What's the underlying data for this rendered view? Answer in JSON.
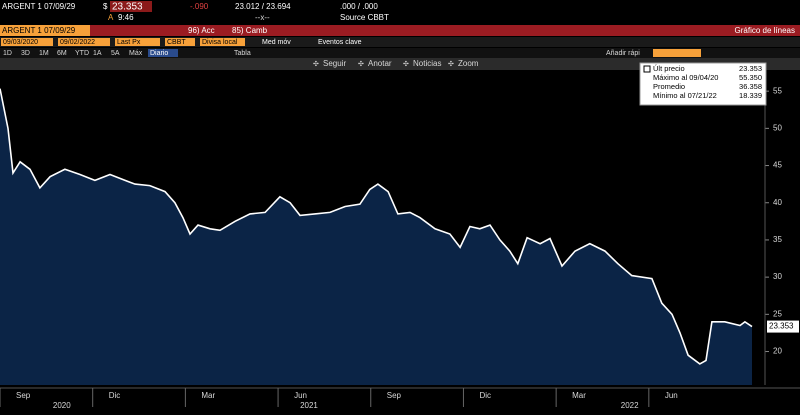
{
  "header": {
    "security": "ARGENT 1 07/09/29",
    "currency": "$",
    "price": "23.353",
    "change": "-.090",
    "range": "23.012 / 23.694",
    "yield": ".000 / .000",
    "time_prefix": "A",
    "time": "9:46",
    "separator": "--x--",
    "source": "Source CBBT"
  },
  "menu_bar": {
    "ticker": "ARGENT 1 07/09/29",
    "actions": [
      "96) Acc",
      "85) Camb"
    ],
    "title": "Gráfico de líneas"
  },
  "fields": {
    "start_date": "09/03/2020",
    "end_date": "09/02/2022",
    "field": "Last Px",
    "pricing_source": "CBBT",
    "currency": "Divisa local",
    "options": [
      "Med móv",
      "Eventos clave"
    ]
  },
  "periods": {
    "buttons": [
      "1D",
      "3D",
      "1M",
      "6M",
      "YTD",
      "1A",
      "5A",
      "Máx"
    ],
    "frequency": "Diario",
    "table": "Tabla",
    "quick_add": "Añadir rápi"
  },
  "toolbar": [
    "Seguir",
    "Anotar",
    "Noticias",
    "Zoom"
  ],
  "chart_data": {
    "type": "line",
    "x": [
      0.0,
      0.26,
      0.42,
      0.65,
      0.97,
      1.29,
      1.62,
      2.1,
      2.59,
      3.07,
      3.56,
      4.05,
      4.37,
      4.85,
      5.34,
      5.66,
      5.92,
      6.15,
      6.41,
      6.8,
      7.12,
      7.61,
      8.09,
      8.58,
      9.06,
      9.39,
      9.71,
      10.19,
      10.68,
      11.17,
      11.65,
      11.97,
      12.23,
      12.56,
      12.88,
      13.27,
      13.59,
      14.08,
      14.56,
      14.89,
      15.21,
      15.53,
      15.86,
      16.18,
      16.5,
      16.76,
      17.06,
      17.48,
      17.8,
      18.19,
      18.61,
      19.09,
      19.58,
      20.0,
      20.45,
      21.1,
      21.42,
      21.75,
      22.01,
      22.27,
      22.65,
      22.85,
      23.04,
      23.46,
      23.95,
      24.11,
      24.34
    ],
    "series": [
      {
        "name": "Últ precio",
        "color": "#ffffff",
        "fill": "#0b2446",
        "values": [
          55.35,
          50,
          44,
          45.5,
          44.5,
          42,
          43.5,
          44.5,
          43.8,
          43,
          43.8,
          43,
          42.5,
          42.3,
          41.5,
          40,
          38,
          35.8,
          37,
          36.5,
          36.3,
          37.5,
          38.5,
          38.7,
          40.8,
          40,
          38.3,
          38.5,
          38.7,
          39.5,
          39.8,
          41.8,
          42.5,
          41.5,
          38.5,
          38.7,
          38,
          36.5,
          35.8,
          34,
          36.8,
          36.5,
          37,
          35,
          33.5,
          31.8,
          35.3,
          34.5,
          35.2,
          31.5,
          33.5,
          34.5,
          33.5,
          31.8,
          30.2,
          29.8,
          26.5,
          25,
          22.5,
          19.5,
          18.34,
          18.8,
          24,
          24,
          23.5,
          24,
          23.353
        ]
      }
    ],
    "last_label": "23.353",
    "stats": [
      {
        "label": "Máximo al 09/04/20",
        "value": "55.350"
      },
      {
        "label": "Promedio",
        "value": "36.358"
      },
      {
        "label": "Mínimo al 07/21/22",
        "value": "18.339"
      }
    ],
    "last_value_text": "23.353",
    "xlim": [
      0,
      24.76
    ],
    "ylim": [
      15.5,
      56.5
    ],
    "yticks": [
      20,
      25,
      30,
      35,
      40,
      45,
      50,
      55
    ],
    "xticks": [
      {
        "value": 0,
        "label": "Sep"
      },
      {
        "value": 3,
        "label": "Dic"
      },
      {
        "value": 6,
        "label": "Mar"
      },
      {
        "value": 9,
        "label": "Jun"
      },
      {
        "value": 12,
        "label": "Sep"
      },
      {
        "value": 15,
        "label": "Dic"
      },
      {
        "value": 18,
        "label": "Mar"
      },
      {
        "value": 21,
        "label": "Jun"
      }
    ],
    "years": [
      "2020",
      "2021",
      "2022"
    ],
    "grid": false
  }
}
